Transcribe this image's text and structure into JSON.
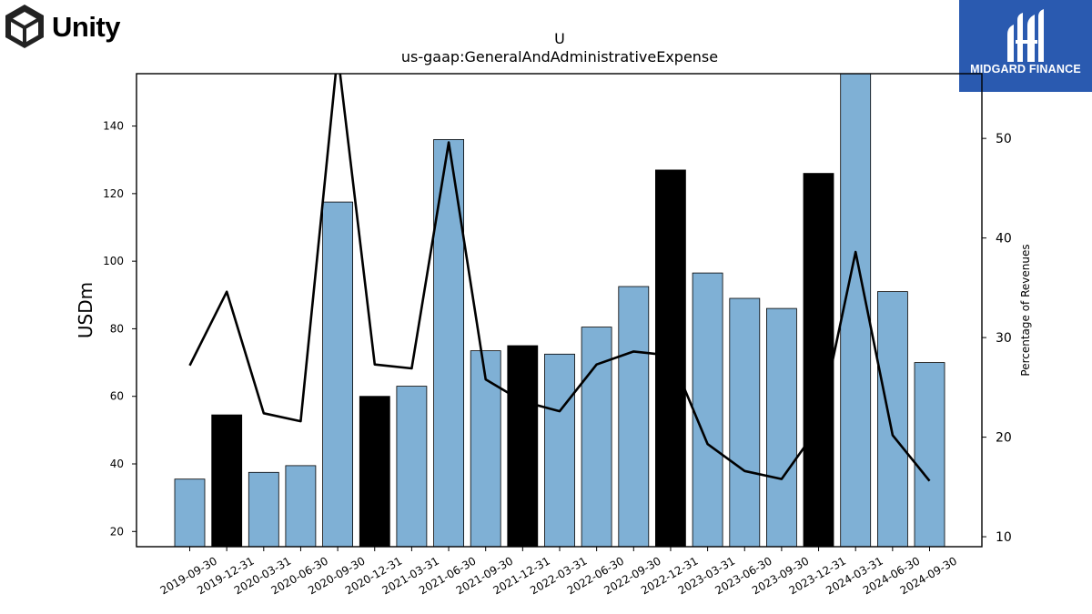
{
  "brand": {
    "left_logo_text": "Unity",
    "right_logo_text": "MIDGARD FINANCE",
    "left_logo_icon": "unity-cube-icon",
    "right_logo_icon": "midgard-finance-icon",
    "right_logo_bg": "#2a5ab0"
  },
  "chart_data": {
    "type": "bar",
    "title": "U",
    "subtitle": "us-gaap:GeneralAndAdministrativeExpense",
    "ylabel": "USDm",
    "y2label": "Percentage of Revenues",
    "ylim": [
      15.5,
      155.5
    ],
    "y2lim": [
      9.0,
      56.5
    ],
    "yticks": [
      20,
      40,
      60,
      80,
      100,
      120,
      140
    ],
    "y2ticks": [
      10,
      20,
      30,
      40,
      50
    ],
    "grid": false,
    "colors": {
      "bar": "#7fb0d5",
      "bar_q4": "#000000",
      "line": "#000000"
    },
    "categories": [
      "2019-09-30",
      "2019-12-31",
      "2020-03-31",
      "2020-06-30",
      "2020-09-30",
      "2020-12-31",
      "2021-03-31",
      "2021-06-30",
      "2021-09-30",
      "2021-12-31",
      "2022-03-31",
      "2022-06-30",
      "2022-09-30",
      "2022-12-31",
      "2023-03-31",
      "2023-06-30",
      "2023-09-30",
      "2023-12-31",
      "2024-03-31",
      "2024-06-30",
      "2024-09-30"
    ],
    "series": [
      {
        "type": "bar",
        "values": [
          35.5,
          54.5,
          37.5,
          39.5,
          117.5,
          60.0,
          63.0,
          136.0,
          73.5,
          75.0,
          72.5,
          80.5,
          92.5,
          127.0,
          96.5,
          89.0,
          86.0,
          126.0,
          160.0,
          91.0,
          70.0
        ],
        "highlight": [
          false,
          true,
          false,
          false,
          false,
          true,
          false,
          false,
          false,
          true,
          false,
          false,
          false,
          true,
          false,
          false,
          false,
          true,
          false,
          false,
          false
        ]
      },
      {
        "type": "line",
        "axis": "right",
        "values": [
          27.2,
          34.6,
          22.4,
          21.6,
          58.5,
          27.3,
          26.9,
          49.6,
          25.8,
          23.6,
          22.6,
          27.3,
          28.6,
          28.2,
          19.3,
          16.6,
          15.8,
          21.0,
          38.6,
          20.2,
          15.6
        ]
      }
    ]
  }
}
